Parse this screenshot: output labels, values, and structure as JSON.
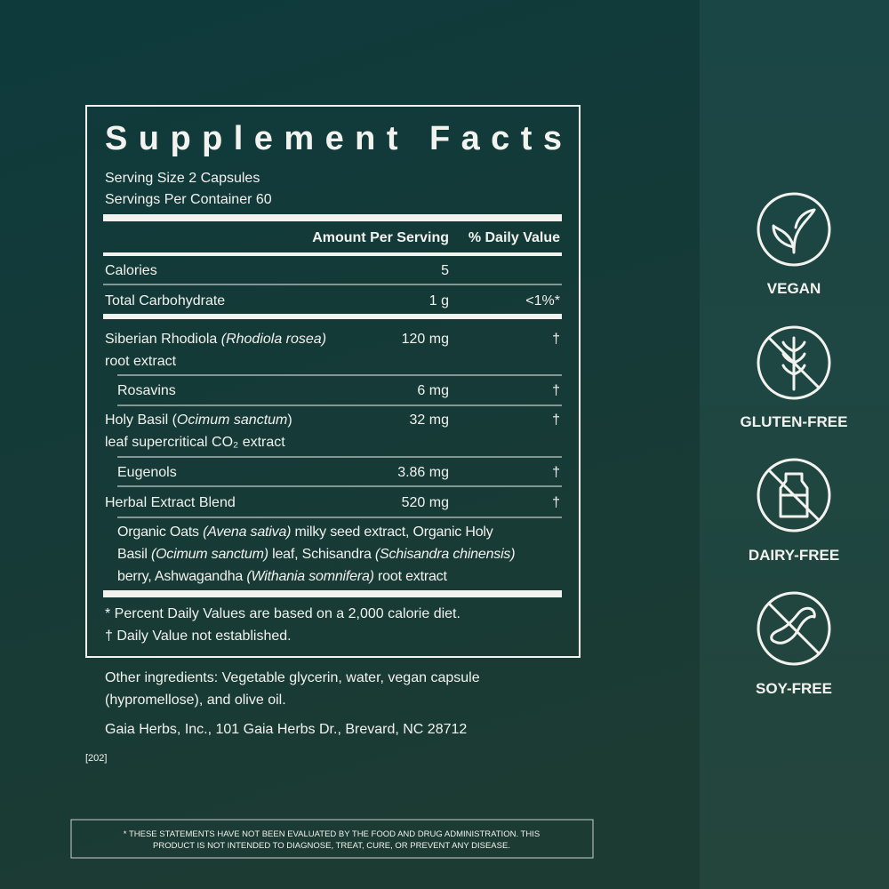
{
  "title": "Supplement Facts",
  "serving_size": "Serving Size 2 Capsules",
  "servings_per_container": "Servings Per Container 60",
  "header": {
    "amount": "Amount Per Serving",
    "daily_value": "% Daily Value"
  },
  "rows": [
    {
      "name": [
        "Calories"
      ],
      "amount": "5"
    },
    {
      "name": [
        "Total Carbohydrate"
      ],
      "amount": "1 g",
      "daily_value": "<1%*"
    },
    {
      "name": [
        "Siberian Rhodiola ",
        {
          "italic": "(Rhodiola rosea)"
        }
      ],
      "name_line2": "root extract",
      "amount": "120 mg",
      "daily_value": "†"
    },
    {
      "name": [
        "Rosavins"
      ],
      "amount": "6 mg",
      "daily_value": "†"
    },
    {
      "name": [
        "Holy Basil (",
        {
          "italic": "Ocimum sanctum"
        },
        ")"
      ],
      "name_line2": "leaf supercritical CO₂ extract",
      "amount": "32 mg",
      "daily_value": "†"
    },
    {
      "name": [
        "Eugenols"
      ],
      "amount": "3.86 mg",
      "daily_value": "†"
    },
    {
      "name": [
        "Herbal Extract Blend"
      ],
      "amount": "520 mg",
      "daily_value": "†"
    }
  ],
  "blend_lines": [
    [
      "Organic Oats ",
      {
        "italic": "(Avena sativa)"
      },
      " milky seed extract, Organic Holy"
    ],
    [
      "Basil ",
      {
        "italic": "(Ocimum sanctum)"
      },
      " leaf, Schisandra ",
      {
        "italic": "(Schisandra chinensis)"
      }
    ],
    [
      "berry, Ashwagandha ",
      {
        "italic": "(Withania somnifera)"
      },
      " root extract"
    ]
  ],
  "footnotes": [
    "*  Percent Daily Values are based on a 2,000 calorie diet.",
    "† Daily Value not established."
  ],
  "other_ingredients": [
    "Other ingredients: Vegetable glycerin, water, vegan capsule",
    "(hypromellose), and olive oil."
  ],
  "address": "Gaia Herbs, Inc., 101 Gaia Herbs Dr., Brevard, NC 28712",
  "code": "[202]",
  "disclaimer": [
    "* THESE STATEMENTS HAVE NOT BEEN EVALUATED BY THE FOOD AND DRUG ADMINISTRATION. THIS",
    "PRODUCT IS NOT INTENDED TO DIAGNOSE, TREAT, CURE, OR PREVENT ANY DISEASE."
  ],
  "badges": [
    "VEGAN",
    "GLUTEN-FREE",
    "DAIRY-FREE",
    "SOY-FREE"
  ]
}
